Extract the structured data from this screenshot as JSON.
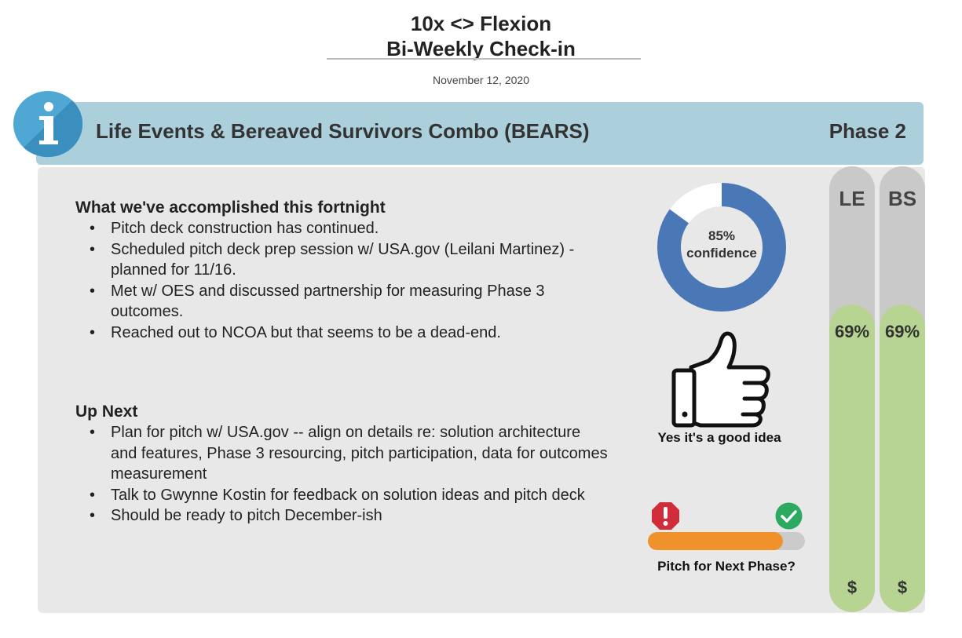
{
  "header": {
    "title_line1": "10x <> Flexion",
    "title_line2": "Bi-Weekly Check-in",
    "date": "November 12, 2020"
  },
  "banner": {
    "title": "Life Events & Bereaved Survivors Combo (BEARS)",
    "phase": "Phase 2",
    "icon": "info-icon"
  },
  "accomplished": {
    "heading": "What we've accomplished this fortnight",
    "items": [
      "Pitch deck construction has continued.",
      "Scheduled pitch deck prep session w/ USA.gov (Leilani Martinez) - planned for 11/16.",
      "Met w/ OES and discussed partnership for measuring Phase 3 outcomes.",
      "Reached out to NCOA but that seems to be a dead-end."
    ]
  },
  "up_next": {
    "heading": "Up Next",
    "items": [
      "Plan for pitch w/ USA.gov -- align on details re: solution architecture and features, Phase 3 resourcing, pitch participation, data for outcomes measurement",
      "Talk to Gwynne Kostin for feedback on solution ideas and pitch deck",
      "Should be ready to pitch December-ish"
    ]
  },
  "confidence": {
    "value": 85,
    "percent_label": "85%",
    "label": "confidence",
    "color": "#4a78b6"
  },
  "idea": {
    "icon": "thumbs-up-icon",
    "caption": "Yes it's a good idea"
  },
  "pitch": {
    "progress": 0.86,
    "caption": "Pitch for Next Phase?",
    "fill_color": "#f0922b",
    "left_icon": "alert-icon",
    "right_icon": "check-icon"
  },
  "meters": {
    "le": {
      "label": "LE",
      "value": 69,
      "percent_label": "69%",
      "dollar": "$"
    },
    "bs": {
      "label": "BS",
      "value": 69,
      "percent_label": "69%",
      "dollar": "$"
    }
  }
}
